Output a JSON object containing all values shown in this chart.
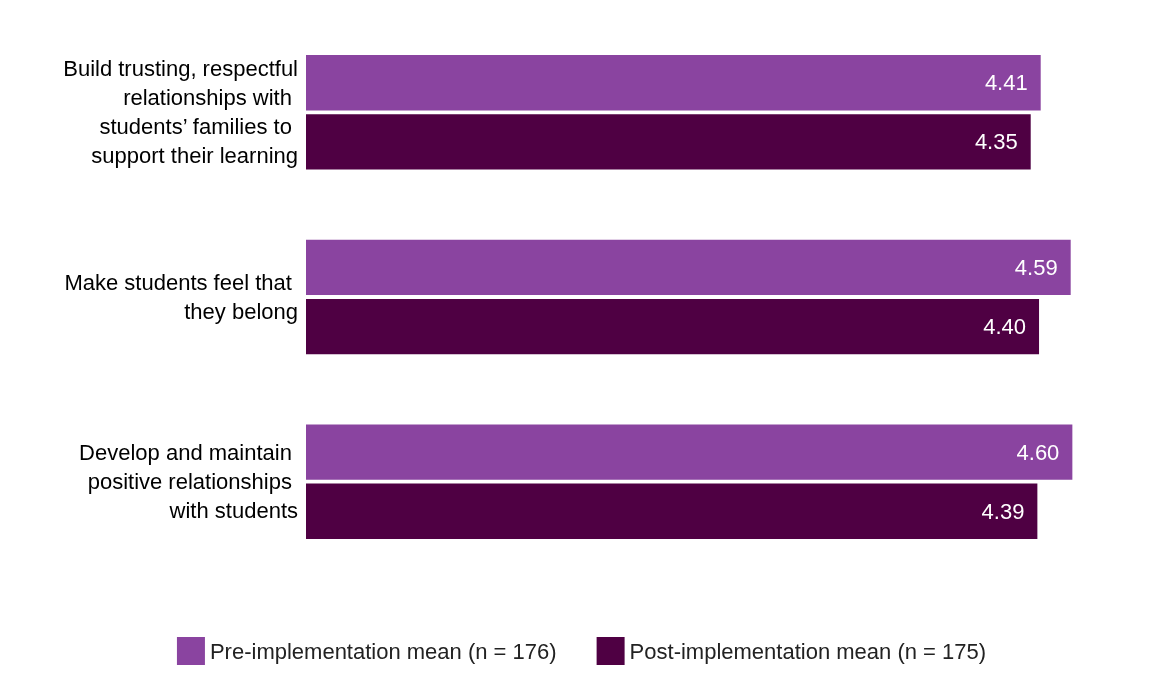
{
  "chart_data": {
    "type": "bar",
    "orientation": "horizontal",
    "categories": [
      "Build trusting, respectful relationships with students’ families to support their learning",
      "Make students feel that they belong",
      "Develop and maintain positive relationships with students"
    ],
    "series": [
      {
        "name": "Pre-implementation mean (n = 176)",
        "color": "#8a44a0",
        "values": [
          4.41,
          4.59,
          4.6
        ],
        "value_labels": [
          "4.41",
          "4.59",
          "4.60"
        ]
      },
      {
        "name": "Post-implementation mean (n = 175)",
        "color": "#4f0043",
        "values": [
          4.35,
          4.4,
          4.39
        ],
        "value_labels": [
          "4.35",
          "4.40",
          "4.39"
        ]
      }
    ],
    "legend": "bottom",
    "grid": false
  }
}
